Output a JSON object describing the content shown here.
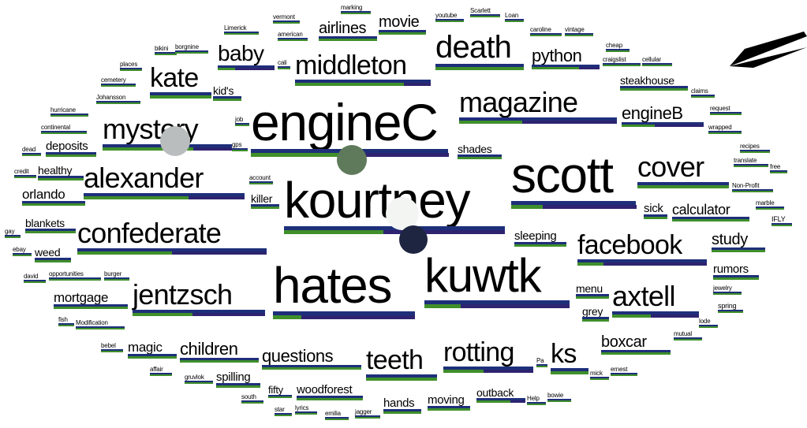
{
  "words": [
    {
      "text": "engineC",
      "size": 66
    },
    {
      "text": "kourtney",
      "size": 64
    },
    {
      "text": "scott",
      "size": 64
    },
    {
      "text": "hates",
      "size": 64
    },
    {
      "text": "kuwtk",
      "size": 60
    },
    {
      "text": "death",
      "size": 40
    },
    {
      "text": "middleton",
      "size": 34
    },
    {
      "text": "magazine",
      "size": 36
    },
    {
      "text": "mystery",
      "size": 36
    },
    {
      "text": "alexander",
      "size": 36
    },
    {
      "text": "confederate",
      "size": 36
    },
    {
      "text": "jentzsch",
      "size": 36
    },
    {
      "text": "cover",
      "size": 36
    },
    {
      "text": "axtell",
      "size": 36
    },
    {
      "text": "facebook",
      "size": 34
    },
    {
      "text": "kate",
      "size": 34
    },
    {
      "text": "baby",
      "size": 28
    },
    {
      "text": "teeth",
      "size": 34
    },
    {
      "text": "rotting",
      "size": 34
    },
    {
      "text": "ks",
      "size": 34
    },
    {
      "text": "python",
      "size": 22
    },
    {
      "text": "engineB",
      "size": 22
    },
    {
      "text": "questions",
      "size": 22
    },
    {
      "text": "children",
      "size": 22
    },
    {
      "text": "boxcar",
      "size": 20
    },
    {
      "text": "movie",
      "size": 20
    },
    {
      "text": "airlines",
      "size": 20
    },
    {
      "text": "calculator",
      "size": 18
    },
    {
      "text": "study",
      "size": 20
    },
    {
      "text": "mortgage",
      "size": 17
    },
    {
      "text": "magic",
      "size": 17
    },
    {
      "text": "rumors",
      "size": 15
    },
    {
      "text": "orlando",
      "size": 17
    },
    {
      "text": "deposits",
      "size": 15
    },
    {
      "text": "healthy",
      "size": 14
    },
    {
      "text": "blankets",
      "size": 14
    },
    {
      "text": "weed",
      "size": 14
    },
    {
      "text": "spilling",
      "size": 15
    },
    {
      "text": "woodforest",
      "size": 15
    },
    {
      "text": "hands",
      "size": 15
    },
    {
      "text": "moving",
      "size": 15
    },
    {
      "text": "outback",
      "size": 14
    },
    {
      "text": "shades",
      "size": 14
    },
    {
      "text": "sleeping",
      "size": 15
    },
    {
      "text": "sick",
      "size": 15
    },
    {
      "text": "steakhouse",
      "size": 14
    },
    {
      "text": "killer",
      "size": 14
    },
    {
      "text": "kid's",
      "size": 14
    },
    {
      "text": "menu",
      "size": 14
    },
    {
      "text": "grey",
      "size": 14
    },
    {
      "text": "fifty",
      "size": 13
    },
    {
      "text": "vermont",
      "size": 8
    },
    {
      "text": "american",
      "size": 8
    },
    {
      "text": "marking",
      "size": 8
    },
    {
      "text": "youtube",
      "size": 8
    },
    {
      "text": "Scarlett",
      "size": 8
    },
    {
      "text": "Loan",
      "size": 8
    },
    {
      "text": "caroline",
      "size": 8
    },
    {
      "text": "vintage",
      "size": 8
    },
    {
      "text": "Limerick",
      "size": 8
    },
    {
      "text": "bikini",
      "size": 8
    },
    {
      "text": "borgnine",
      "size": 8
    },
    {
      "text": "places",
      "size": 8
    },
    {
      "text": "cemetery",
      "size": 8
    },
    {
      "text": "Johansson",
      "size": 8
    },
    {
      "text": "hurricane",
      "size": 8
    },
    {
      "text": "continental",
      "size": 8
    },
    {
      "text": "dead",
      "size": 8
    },
    {
      "text": "credit",
      "size": 8
    },
    {
      "text": "gay",
      "size": 8
    },
    {
      "text": "ebay",
      "size": 8
    },
    {
      "text": "david",
      "size": 8
    },
    {
      "text": "opportunities",
      "size": 8
    },
    {
      "text": "burger",
      "size": 8
    },
    {
      "text": "fish",
      "size": 8
    },
    {
      "text": "Modification",
      "size": 8
    },
    {
      "text": "bebel",
      "size": 8
    },
    {
      "text": "affair",
      "size": 8
    },
    {
      "text": "gruvlok",
      "size": 8
    },
    {
      "text": "south",
      "size": 8
    },
    {
      "text": "star",
      "size": 8
    },
    {
      "text": "lyrics",
      "size": 8
    },
    {
      "text": "emilia",
      "size": 8
    },
    {
      "text": "jagger",
      "size": 8
    },
    {
      "text": "Help",
      "size": 8
    },
    {
      "text": "bowie",
      "size": 8
    },
    {
      "text": "mick",
      "size": 8
    },
    {
      "text": "ernest",
      "size": 8
    },
    {
      "text": "mutual",
      "size": 8
    },
    {
      "text": "lode",
      "size": 8
    },
    {
      "text": "spring",
      "size": 9
    },
    {
      "text": "jewelry",
      "size": 8
    },
    {
      "text": "IFLY",
      "size": 9
    },
    {
      "text": "marble",
      "size": 8
    },
    {
      "text": "Non-Profit",
      "size": 8
    },
    {
      "text": "free",
      "size": 8
    },
    {
      "text": "translate",
      "size": 8
    },
    {
      "text": "recipes",
      "size": 8
    },
    {
      "text": "wrapped",
      "size": 8
    },
    {
      "text": "request",
      "size": 8
    },
    {
      "text": "claims",
      "size": 8
    },
    {
      "text": "cheap",
      "size": 8
    },
    {
      "text": "craigslist",
      "size": 8
    },
    {
      "text": "cellular",
      "size": 8
    },
    {
      "text": "cali",
      "size": 8
    },
    {
      "text": "job",
      "size": 8
    },
    {
      "text": "gps",
      "size": 8
    },
    {
      "text": "account",
      "size": 8
    },
    {
      "text": "Pa",
      "size": 8
    }
  ],
  "colors": {
    "bar_top": "#1e2f7a",
    "bar_bottom": "#3f8f2a",
    "arrow": "#000000"
  },
  "markers": [
    {
      "name": "marker-gray",
      "color": "#b9bdbd"
    },
    {
      "name": "marker-olive",
      "color": "#5e7a5a"
    },
    {
      "name": "marker-white",
      "color": "#f3f5f3"
    },
    {
      "name": "marker-navy",
      "color": "#1e2540"
    }
  ],
  "arrow_icon": "arrow-icon"
}
